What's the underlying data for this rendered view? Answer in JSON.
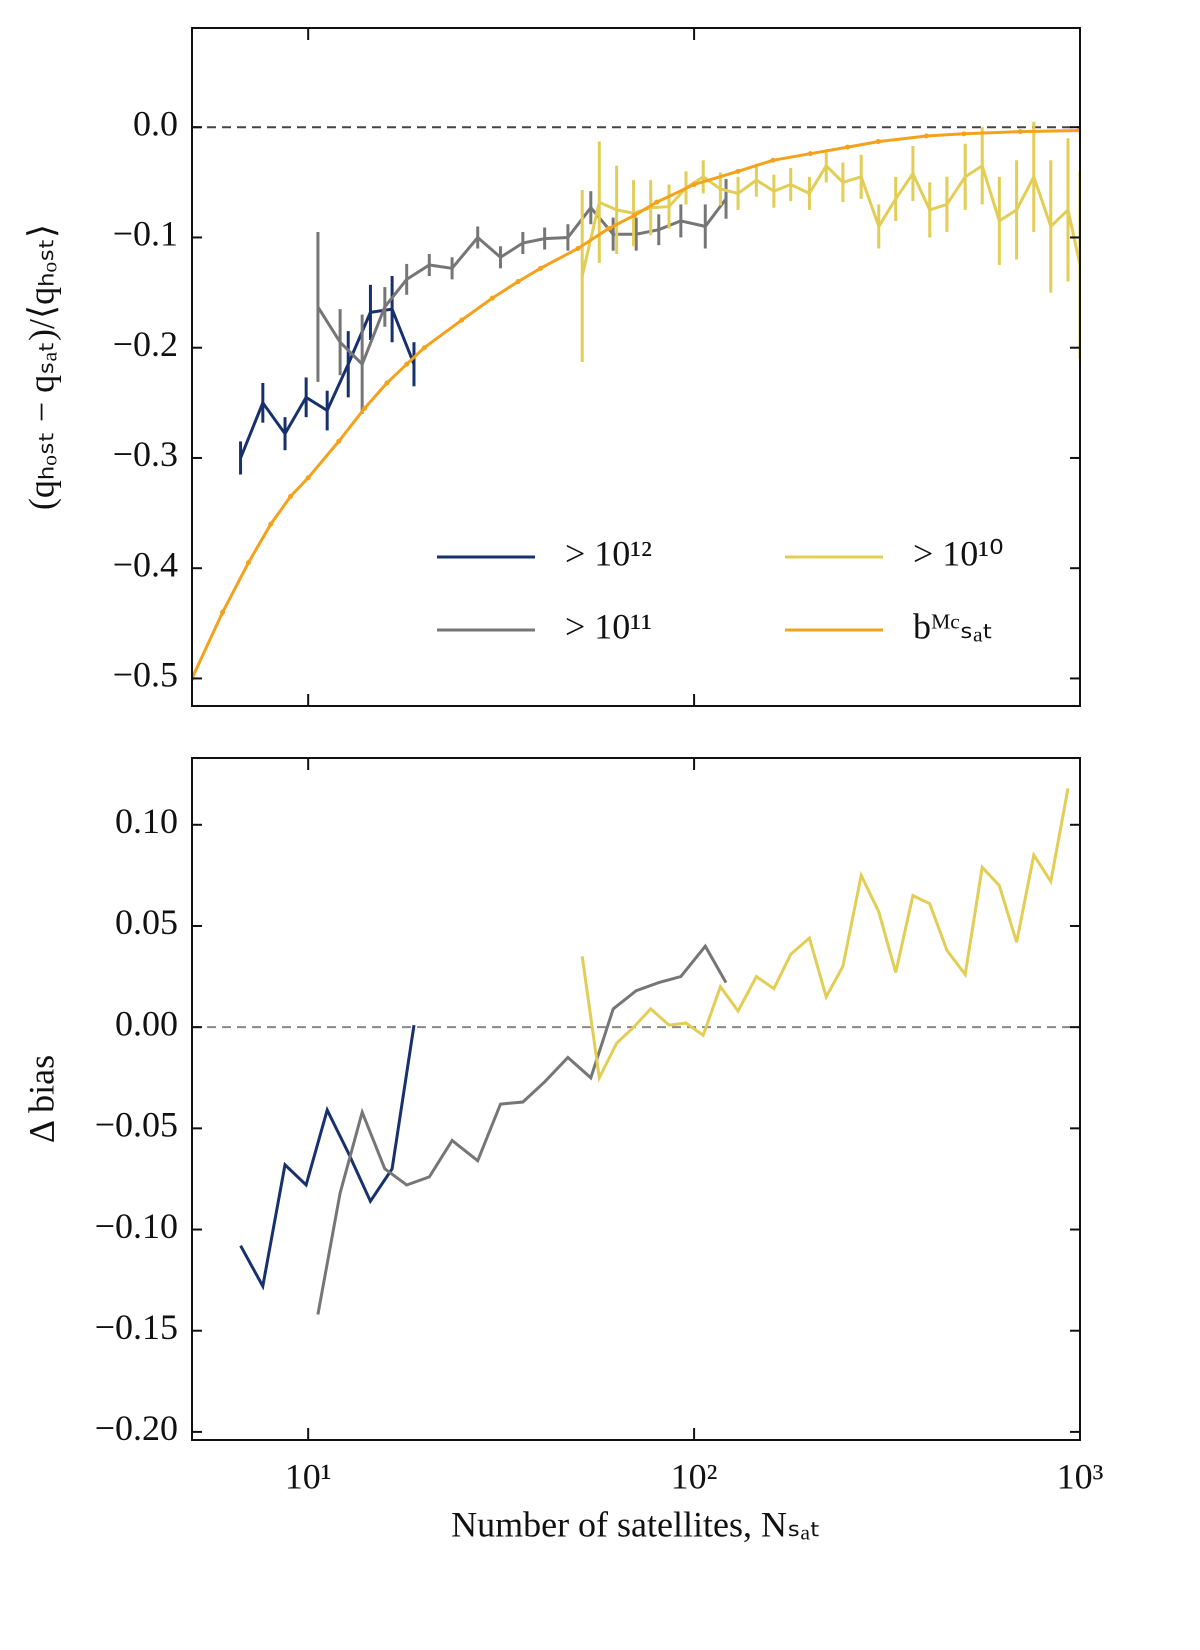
{
  "chart_data": [
    {
      "type": "line",
      "xscale": "log",
      "xlim": [
        5,
        1000
      ],
      "xticks": [
        10,
        100,
        1000
      ],
      "ylim": [
        -0.525,
        0.09
      ],
      "yticks": [
        {
          "value": 0,
          "label": "0.0"
        },
        {
          "value": -0.1,
          "label": "−0.1"
        },
        {
          "value": -0.2,
          "label": "−0.2"
        },
        {
          "value": -0.3,
          "label": "−0.3"
        },
        {
          "value": -0.4,
          "label": "−0.4"
        },
        {
          "value": -0.5,
          "label": "−0.5"
        }
      ],
      "ylabel": "(qₕₒₛₜ − qₛₐₜ)/⟨qₕₒₛₜ⟩",
      "hline": 0,
      "legend": "lower right",
      "legend_ncol": 2,
      "series": [
        {
          "name": "> 10¹²",
          "color": "#17306e",
          "x": [
            6.68,
            7.63,
            8.71,
            9.88,
            11.2,
            12.7,
            14.5,
            16.5,
            18.8
          ],
          "values": [
            -0.3,
            -0.25,
            -0.278,
            -0.245,
            -0.257,
            -0.215,
            -0.168,
            -0.165,
            -0.215
          ],
          "errors": [
            0.015,
            0.018,
            0.015,
            0.018,
            0.018,
            0.03,
            0.025,
            0.03,
            0.02
          ]
        },
        {
          "name": "> 10¹¹",
          "color": "#767676",
          "x": [
            10.6,
            12.1,
            13.8,
            15.8,
            18.0,
            20.6,
            23.6,
            27.5,
            31.5,
            36.0,
            41.0,
            47.1,
            54.0,
            61.7,
            70.8,
            81.0,
            92.4,
            106.9,
            121
          ],
          "values": [
            -0.163,
            -0.195,
            -0.215,
            -0.163,
            -0.138,
            -0.125,
            -0.128,
            -0.1,
            -0.118,
            -0.105,
            -0.101,
            -0.1,
            -0.073,
            -0.097,
            -0.097,
            -0.093,
            -0.085,
            -0.09,
            -0.065
          ],
          "errors": [
            0.068,
            0.03,
            0.045,
            0.018,
            0.014,
            0.01,
            0.01,
            0.01,
            0.01,
            0.01,
            0.01,
            0.012,
            0.015,
            0.015,
            0.015,
            0.014,
            0.015,
            0.02,
            0.018
          ]
        },
        {
          "name": "> 10¹⁰",
          "color": "#e2cd55",
          "x": [
            51.3,
            56.8,
            63.0,
            69.7,
            77.2,
            86.1,
            95.3,
            105.6,
            117,
            130,
            145,
            161,
            178,
            199,
            220,
            243,
            271,
            301,
            333,
            369,
            408,
            452,
            504,
            558,
            618,
            685,
            759,
            840,
            931,
            1000
          ],
          "values": [
            -0.135,
            -0.068,
            -0.075,
            -0.078,
            -0.073,
            -0.072,
            -0.055,
            -0.045,
            -0.056,
            -0.06,
            -0.048,
            -0.058,
            -0.052,
            -0.06,
            -0.035,
            -0.05,
            -0.045,
            -0.09,
            -0.065,
            -0.042,
            -0.075,
            -0.07,
            -0.045,
            -0.035,
            -0.085,
            -0.075,
            -0.045,
            -0.09,
            -0.075,
            -0.125
          ],
          "errors": [
            0.078,
            0.055,
            0.04,
            0.03,
            0.025,
            0.02,
            0.015,
            0.015,
            0.015,
            0.015,
            0.015,
            0.015,
            0.015,
            0.015,
            0.015,
            0.018,
            0.02,
            0.02,
            0.02,
            0.025,
            0.025,
            0.025,
            0.03,
            0.035,
            0.04,
            0.045,
            0.05,
            0.06,
            0.065,
            0.085
          ]
        },
        {
          "name": "bᴹᶜₛₐₜ",
          "color": "#f4a11b",
          "markers": true,
          "x": [
            5,
            6,
            7,
            8,
            9,
            10,
            12,
            14,
            16,
            18,
            20,
            25,
            30,
            35,
            40,
            50,
            60,
            70,
            80,
            100,
            130,
            160,
            200,
            250,
            300,
            400,
            500,
            700,
            1000
          ],
          "values": [
            -0.5,
            -0.44,
            -0.395,
            -0.36,
            -0.335,
            -0.318,
            -0.285,
            -0.255,
            -0.232,
            -0.215,
            -0.2,
            -0.175,
            -0.155,
            -0.14,
            -0.128,
            -0.11,
            -0.092,
            -0.08,
            -0.068,
            -0.052,
            -0.04,
            -0.03,
            -0.024,
            -0.018,
            -0.013,
            -0.008,
            -0.006,
            -0.004,
            -0.003
          ]
        }
      ]
    },
    {
      "type": "line",
      "xscale": "log",
      "xlim": [
        5,
        1000
      ],
      "xticks": [
        {
          "value": 10,
          "label": "10¹"
        },
        {
          "value": 100,
          "label": "10²"
        },
        {
          "value": 1000,
          "label": "10³"
        }
      ],
      "ylim": [
        -0.204,
        0.133
      ],
      "yticks": [
        {
          "value": 0.1,
          "label": "0.10"
        },
        {
          "value": 0.05,
          "label": "0.05"
        },
        {
          "value": 0,
          "label": "0.00"
        },
        {
          "value": -0.05,
          "label": "−0.05"
        },
        {
          "value": -0.1,
          "label": "−0.10"
        },
        {
          "value": -0.15,
          "label": "−0.15"
        },
        {
          "value": -0.2,
          "label": "−0.20"
        }
      ],
      "xlabel": "Number of satellites, Nₛₐₜ",
      "ylabel": "Δ bias",
      "hline": 0,
      "series": [
        {
          "color": "#17306e",
          "x": [
            6.68,
            7.63,
            8.71,
            9.88,
            11.2,
            12.7,
            14.5,
            16.5,
            18.8
          ],
          "values": [
            -0.108,
            -0.128,
            -0.068,
            -0.078,
            -0.041,
            -0.062,
            -0.086,
            -0.07,
            0.001
          ]
        },
        {
          "color": "#767676",
          "x": [
            10.6,
            12.1,
            13.8,
            15.8,
            18.0,
            20.6,
            23.6,
            27.5,
            31.5,
            36.0,
            41.0,
            47.1,
            54.0,
            61.7,
            70.8,
            81.0,
            92.4,
            106.9,
            121
          ],
          "values": [
            -0.142,
            -0.082,
            -0.042,
            -0.07,
            -0.078,
            -0.074,
            -0.056,
            -0.066,
            -0.038,
            -0.037,
            -0.027,
            -0.015,
            -0.025,
            0.009,
            0.018,
            0.022,
            0.025,
            0.04,
            0.022
          ]
        },
        {
          "color": "#e2cd55",
          "x": [
            51.3,
            56.8,
            63.0,
            69.7,
            77.2,
            86.1,
            95.3,
            105.6,
            117,
            130,
            145,
            161,
            178,
            199,
            220,
            243,
            271,
            301,
            333,
            369,
            408,
            452,
            504,
            558,
            618,
            685,
            759,
            840,
            931
          ],
          "values": [
            0.035,
            -0.025,
            -0.008,
            0.0,
            0.009,
            0.001,
            0.002,
            -0.004,
            0.02,
            0.008,
            0.025,
            0.019,
            0.036,
            0.044,
            0.015,
            0.03,
            0.075,
            0.057,
            0.027,
            0.065,
            0.061,
            0.038,
            0.026,
            0.079,
            0.07,
            0.042,
            0.085,
            0.072,
            0.118
          ]
        }
      ]
    }
  ]
}
